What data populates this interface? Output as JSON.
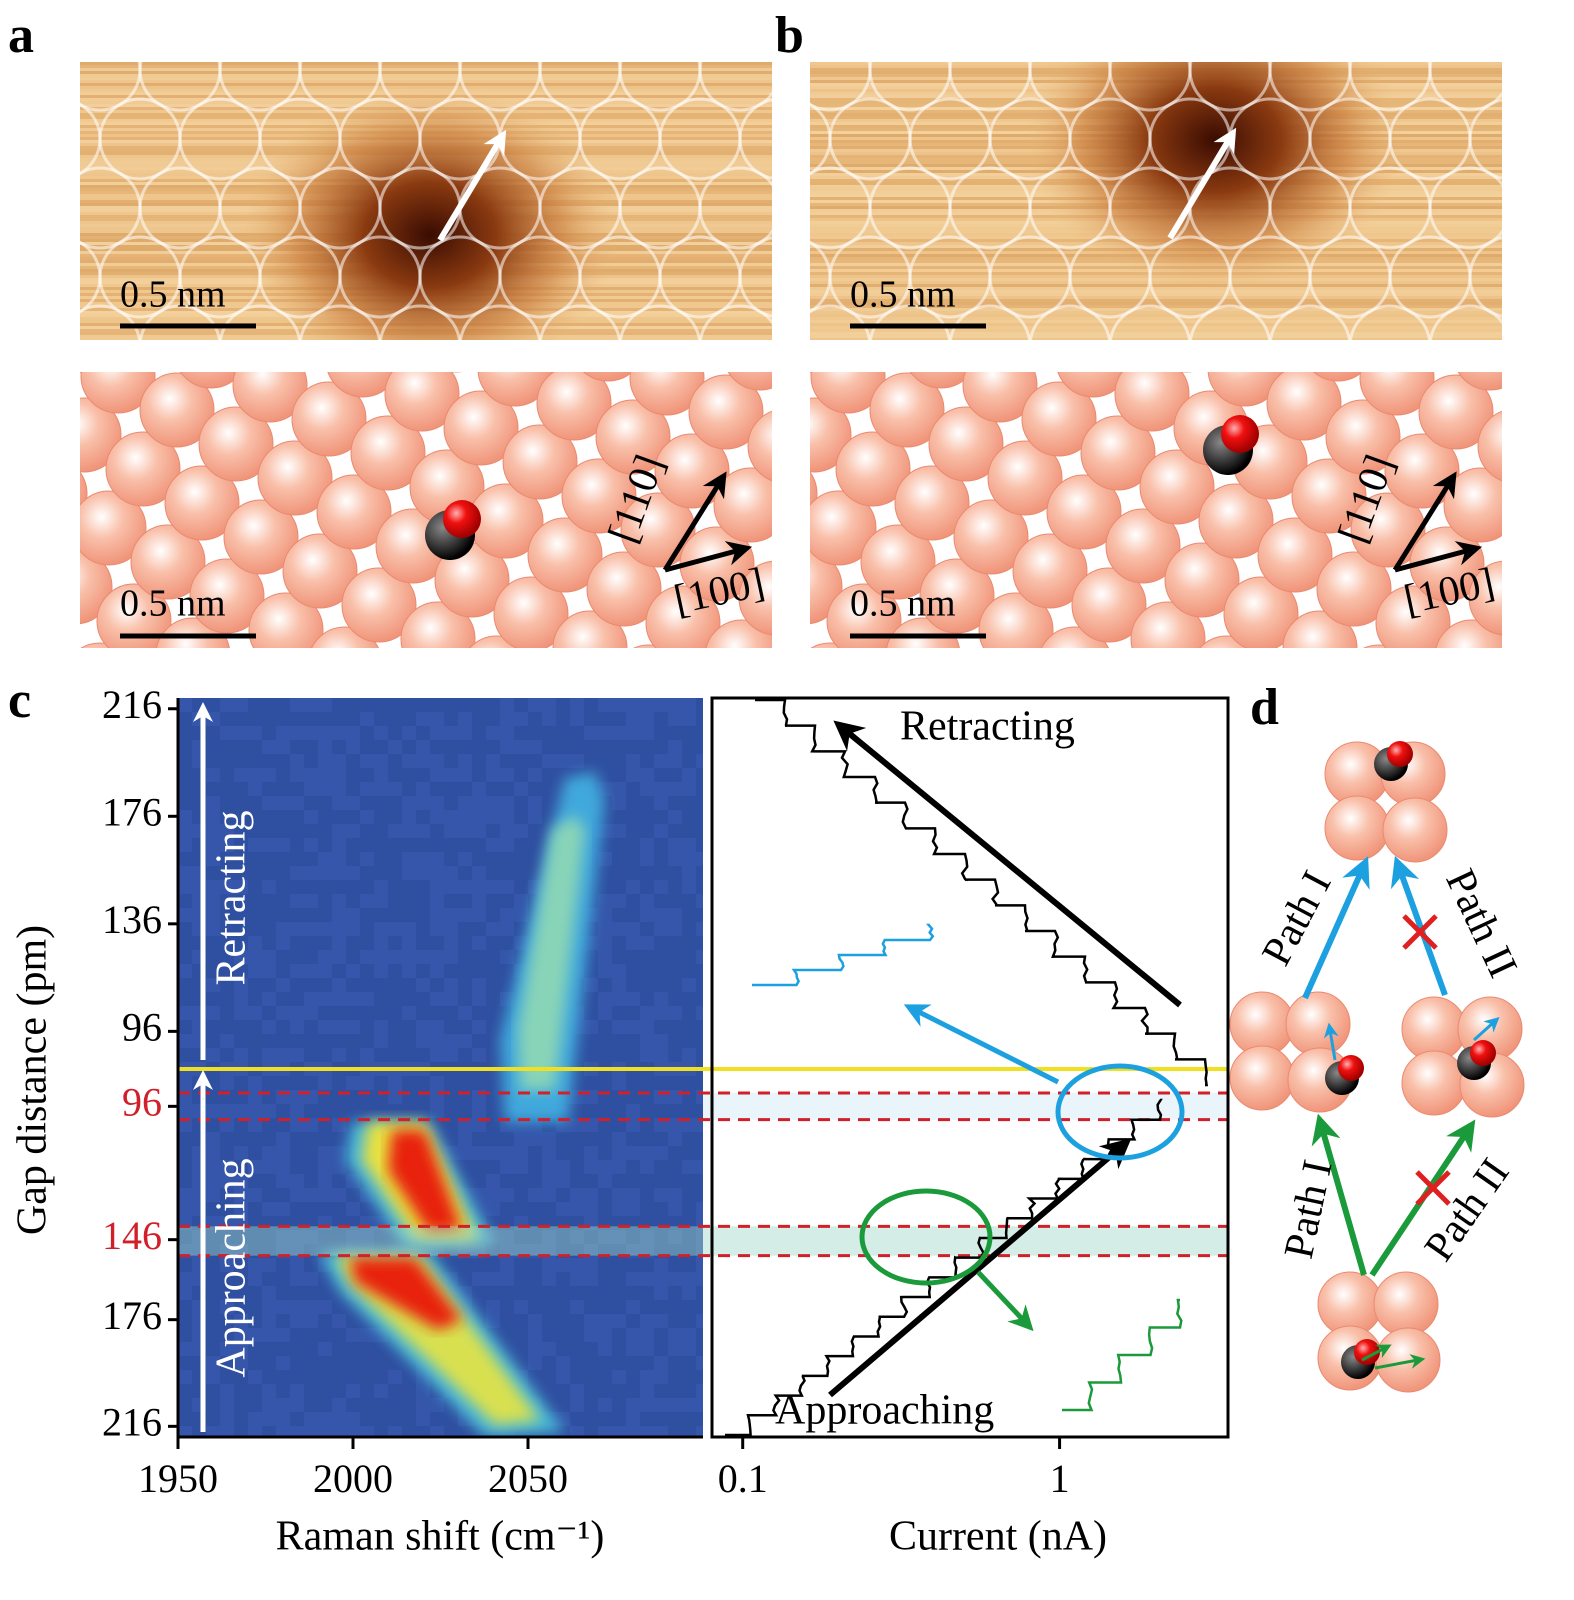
{
  "panel_labels": [
    "a",
    "b",
    "c",
    "d"
  ],
  "images": [
    {
      "scale_bar": "0.5 nm"
    },
    {
      "scale_bar": "0.5 nm"
    },
    {
      "scale_bar": "0.5 nm",
      "directions": [
        "[110]",
        "[100]"
      ]
    },
    {
      "scale_bar": "0.5 nm",
      "directions": [
        "[110]",
        "[100]"
      ]
    }
  ],
  "chart_data": [
    {
      "type": "heatmap",
      "xlabel": "Raman shift (cm⁻¹)",
      "ylabel": "Gap distance (pm)",
      "xlim": [
        1950,
        2100
      ],
      "xticks": [
        1950,
        2000,
        2050
      ],
      "segments": [
        {
          "name": "Retracting",
          "ylim": [
            82,
            220
          ],
          "yticks": [
            216,
            176,
            136,
            96
          ],
          "ytick_colors": [
            "#000",
            "#000",
            "#000",
            "#000"
          ]
        },
        {
          "name": "Approaching",
          "ylim": [
            82,
            220
          ],
          "yticks": [
            96,
            146,
            176,
            216
          ],
          "ytick_colors": [
            "#d0202a",
            "#d0202a",
            "#000",
            "#000"
          ]
        }
      ],
      "bands": [
        [
          91,
          101
        ],
        [
          141,
          152
        ]
      ]
    },
    {
      "type": "line",
      "xlabel": "Current (nA)",
      "xscale": "log",
      "xlim": [
        0.08,
        3.4
      ],
      "xticks": [
        0.1,
        1
      ],
      "annotations": [
        "Retracting",
        "Approaching"
      ]
    }
  ],
  "scheme": {
    "paths": [
      "Path I",
      "Path II",
      "Path I",
      "Path II"
    ]
  }
}
